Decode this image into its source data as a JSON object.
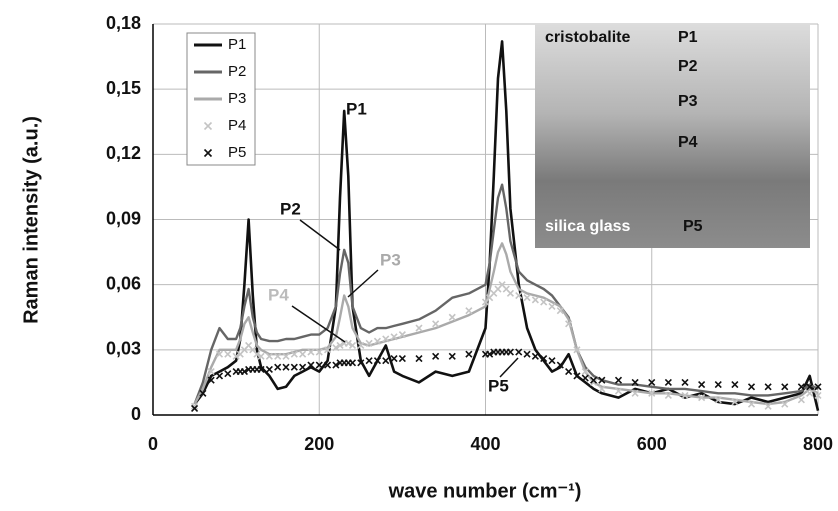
{
  "chart_data": {
    "type": "line",
    "xlabel": "wave number (cm⁻¹)",
    "ylabel": "Raman intensity (a.u.)",
    "xlim": [
      0,
      800
    ],
    "xticks": [
      0,
      200,
      400,
      600,
      800
    ],
    "ylim": [
      0,
      0.18
    ],
    "yticks": [
      0,
      {
        "value": 0.03,
        "label": "0,03"
      },
      {
        "value": 0.06,
        "label": "0,06"
      },
      {
        "value": 0.09,
        "label": "0,09"
      },
      {
        "value": 0.12,
        "label": "0,12"
      },
      {
        "value": 0.15,
        "label": "0,15"
      },
      {
        "value": 0.18,
        "label": "0,18"
      }
    ],
    "grid": true,
    "legend": "top-left",
    "x": [
      50,
      60,
      70,
      80,
      90,
      100,
      105,
      110,
      115,
      120,
      125,
      130,
      140,
      150,
      160,
      170,
      180,
      190,
      200,
      210,
      220,
      225,
      230,
      235,
      240,
      250,
      260,
      270,
      280,
      290,
      300,
      320,
      340,
      360,
      380,
      400,
      405,
      410,
      415,
      420,
      425,
      430,
      440,
      450,
      460,
      470,
      480,
      490,
      500,
      510,
      520,
      530,
      540,
      560,
      580,
      600,
      620,
      640,
      660,
      680,
      700,
      720,
      740,
      760,
      780,
      790,
      800
    ],
    "series": [
      {
        "name": "P1",
        "color": "#111111",
        "marker": "none",
        "values": [
          0.005,
          0.01,
          0.018,
          0.02,
          0.022,
          0.025,
          0.035,
          0.06,
          0.09,
          0.055,
          0.03,
          0.022,
          0.018,
          0.012,
          0.013,
          0.018,
          0.02,
          0.022,
          0.02,
          0.025,
          0.05,
          0.1,
          0.14,
          0.11,
          0.05,
          0.025,
          0.018,
          0.025,
          0.032,
          0.02,
          0.018,
          0.015,
          0.02,
          0.018,
          0.02,
          0.04,
          0.07,
          0.11,
          0.155,
          0.172,
          0.14,
          0.095,
          0.06,
          0.04,
          0.03,
          0.025,
          0.02,
          0.022,
          0.028,
          0.018,
          0.015,
          0.012,
          0.01,
          0.008,
          0.012,
          0.01,
          0.012,
          0.008,
          0.01,
          0.006,
          0.005,
          0.008,
          0.006,
          0.008,
          0.01,
          0.018,
          0.002
        ]
      },
      {
        "name": "P2",
        "color": "#666666",
        "marker": "none",
        "values": [
          0.005,
          0.015,
          0.03,
          0.04,
          0.035,
          0.035,
          0.04,
          0.05,
          0.058,
          0.045,
          0.038,
          0.035,
          0.034,
          0.034,
          0.035,
          0.035,
          0.036,
          0.037,
          0.037,
          0.04,
          0.05,
          0.065,
          0.076,
          0.07,
          0.05,
          0.04,
          0.038,
          0.04,
          0.04,
          0.041,
          0.042,
          0.044,
          0.048,
          0.054,
          0.056,
          0.06,
          0.07,
          0.085,
          0.1,
          0.106,
          0.095,
          0.08,
          0.066,
          0.062,
          0.06,
          0.058,
          0.055,
          0.05,
          0.045,
          0.03,
          0.022,
          0.018,
          0.016,
          0.014,
          0.014,
          0.013,
          0.012,
          0.012,
          0.011,
          0.01,
          0.01,
          0.009,
          0.009,
          0.01,
          0.011,
          0.014,
          0.012
        ]
      },
      {
        "name": "P3",
        "color": "#aaaaaa",
        "marker": "none",
        "values": [
          0.005,
          0.012,
          0.022,
          0.03,
          0.03,
          0.03,
          0.035,
          0.042,
          0.045,
          0.038,
          0.032,
          0.03,
          0.028,
          0.028,
          0.028,
          0.029,
          0.03,
          0.03,
          0.03,
          0.031,
          0.036,
          0.045,
          0.055,
          0.05,
          0.04,
          0.033,
          0.032,
          0.033,
          0.034,
          0.035,
          0.036,
          0.038,
          0.04,
          0.043,
          0.046,
          0.05,
          0.058,
          0.066,
          0.075,
          0.079,
          0.074,
          0.066,
          0.058,
          0.056,
          0.055,
          0.054,
          0.052,
          0.05,
          0.044,
          0.03,
          0.02,
          0.015,
          0.013,
          0.012,
          0.011,
          0.01,
          0.01,
          0.009,
          0.008,
          0.008,
          0.007,
          0.006,
          0.005,
          0.006,
          0.009,
          0.012,
          0.01
        ]
      },
      {
        "name": "P4",
        "color": "#c4c4c4",
        "marker": "x",
        "values": [
          0.004,
          0.01,
          0.02,
          0.028,
          0.028,
          0.027,
          0.028,
          0.03,
          0.032,
          0.03,
          0.028,
          0.027,
          0.027,
          0.027,
          0.027,
          0.028,
          0.028,
          0.029,
          0.029,
          0.03,
          0.031,
          0.032,
          0.033,
          0.033,
          0.032,
          0.032,
          0.033,
          0.034,
          0.035,
          0.036,
          0.037,
          0.04,
          0.042,
          0.045,
          0.048,
          0.052,
          0.054,
          0.056,
          0.058,
          0.06,
          0.058,
          0.056,
          0.055,
          0.054,
          0.053,
          0.052,
          0.05,
          0.048,
          0.042,
          0.03,
          0.02,
          0.015,
          0.012,
          0.011,
          0.01,
          0.01,
          0.009,
          0.009,
          0.008,
          0.007,
          0.006,
          0.005,
          0.004,
          0.005,
          0.007,
          0.01,
          0.009
        ]
      },
      {
        "name": "P5",
        "color": "#111111",
        "marker": "x",
        "values": [
          0.003,
          0.01,
          0.016,
          0.018,
          0.019,
          0.02,
          0.02,
          0.02,
          0.021,
          0.021,
          0.021,
          0.021,
          0.021,
          0.022,
          0.022,
          0.022,
          0.022,
          0.023,
          0.023,
          0.023,
          0.023,
          0.024,
          0.024,
          0.024,
          0.024,
          0.024,
          0.025,
          0.025,
          0.025,
          0.026,
          0.026,
          0.026,
          0.027,
          0.027,
          0.028,
          0.028,
          0.028,
          0.029,
          0.029,
          0.029,
          0.029,
          0.029,
          0.029,
          0.028,
          0.027,
          0.026,
          0.025,
          0.023,
          0.02,
          0.018,
          0.017,
          0.016,
          0.016,
          0.016,
          0.015,
          0.015,
          0.015,
          0.015,
          0.014,
          0.014,
          0.014,
          0.013,
          0.013,
          0.013,
          0.013,
          0.013,
          0.013
        ]
      }
    ],
    "annotations": [
      "P1",
      "P2",
      "P3",
      "P4",
      "P5"
    ],
    "inset_labels": [
      "cristobalite",
      "P1",
      "P2",
      "P3",
      "P4",
      "silica glass",
      "P5"
    ]
  }
}
